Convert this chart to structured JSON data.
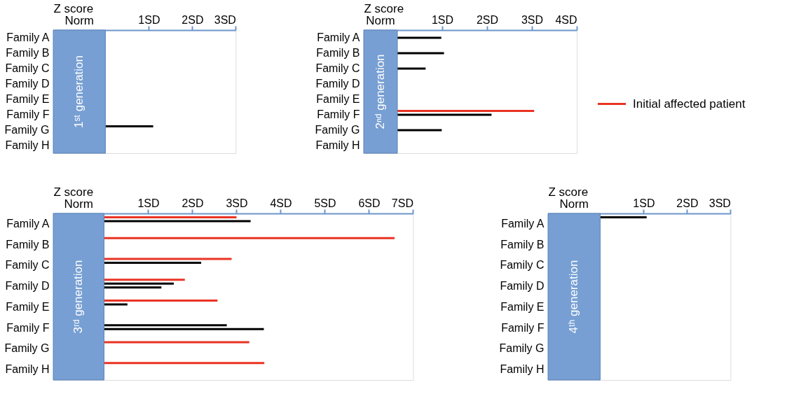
{
  "chart_data": [
    {
      "type": "bar",
      "orientation": "horizontal",
      "xlabel": "Z score",
      "annotations": [
        "Norm"
      ],
      "categories": [
        "Family A",
        "Family B",
        "Family C",
        "Family D",
        "Family E",
        "Family F",
        "Family G",
        "Family H"
      ],
      "xlim": [
        -1.2,
        3
      ],
      "xticks": [
        {
          "value": 1,
          "label": "1SD"
        },
        {
          "value": 2,
          "label": "2SD"
        },
        {
          "value": 3,
          "label": "3SD"
        }
      ],
      "bands": [
        {
          "axis": "x",
          "from": -1.2,
          "to": 0,
          "label": "1ˢᵗ generation",
          "color": "#779fd3"
        }
      ],
      "series": [
        {
          "color": "#000000",
          "values": [
            null,
            null,
            null,
            null,
            null,
            null,
            1.1,
            null
          ]
        }
      ]
    },
    {
      "type": "bar",
      "orientation": "horizontal",
      "xlabel": "Z score",
      "annotations": [
        "Norm"
      ],
      "legend": "right",
      "categories": [
        "Family A",
        "Family B",
        "Family C",
        "Family D",
        "Family E",
        "Family F",
        "Family G",
        "Family H"
      ],
      "xlim": [
        -0.75,
        4
      ],
      "xticks": [
        {
          "value": 1,
          "label": "1SD"
        },
        {
          "value": 2,
          "label": "2SD"
        },
        {
          "value": 3,
          "label": "3SD"
        },
        {
          "value": 4,
          "label": "4SD"
        }
      ],
      "bands": [
        {
          "axis": "x",
          "from": -0.75,
          "to": 0,
          "label": "2ⁿᵈ generation",
          "color": "#779fd3"
        }
      ],
      "series": [
        {
          "name": "Initial affected patient",
          "color": "#ea3323",
          "values": [
            null,
            null,
            null,
            null,
            null,
            3.05,
            null,
            null
          ]
        },
        {
          "color": "#000000",
          "values": [
            0.98,
            1.04,
            0.63,
            null,
            null,
            2.1,
            0.99,
            null
          ]
        }
      ]
    },
    {
      "type": "bar",
      "orientation": "horizontal",
      "xlabel": "Z score",
      "annotations": [
        "Norm"
      ],
      "categories": [
        "Family A",
        "Family B",
        "Family C",
        "Family D",
        "Family E",
        "Family F",
        "Family G",
        "Family H"
      ],
      "xlim": [
        -1.15,
        7
      ],
      "xticks": [
        {
          "value": 1,
          "label": "1SD"
        },
        {
          "value": 2,
          "label": "2SD"
        },
        {
          "value": 3,
          "label": "3SD"
        },
        {
          "value": 4,
          "label": "4SD"
        },
        {
          "value": 5,
          "label": "5SD"
        },
        {
          "value": 6,
          "label": "6SD"
        },
        {
          "value": 7,
          "label": "7SD"
        }
      ],
      "bands": [
        {
          "axis": "x",
          "from": -1.15,
          "to": 0,
          "label": "3ʳᵈ generation",
          "color": "#779fd3"
        }
      ],
      "series": [
        {
          "color": "#ea3323",
          "values": [
            3.0,
            6.58,
            2.89,
            1.83,
            2.57,
            null,
            3.29,
            3.63
          ]
        },
        {
          "color": "#000000",
          "values": [
            3.32,
            null,
            2.2,
            1.58,
            0.53,
            2.78,
            null,
            null
          ]
        },
        {
          "color": "#000000",
          "values": [
            null,
            null,
            null,
            1.3,
            null,
            3.62,
            null,
            null
          ]
        }
      ]
    },
    {
      "type": "bar",
      "orientation": "horizontal",
      "xlabel": "Z score",
      "annotations": [
        "Norm"
      ],
      "categories": [
        "Family A",
        "Family B",
        "Family C",
        "Family D",
        "Family E",
        "Family F",
        "Family G",
        "Family H"
      ],
      "xlim": [
        -1.2,
        3
      ],
      "xticks": [
        {
          "value": 1,
          "label": "1SD"
        },
        {
          "value": 2,
          "label": "2SD"
        },
        {
          "value": 3,
          "label": "3SD"
        }
      ],
      "bands": [
        {
          "axis": "x",
          "from": -1.2,
          "to": 0,
          "label": "4ᵗʰ generation",
          "color": "#779fd3"
        }
      ],
      "series": [
        {
          "color": "#000000",
          "values": [
            1.07,
            null,
            null,
            null,
            null,
            null,
            null,
            null
          ]
        }
      ]
    }
  ]
}
